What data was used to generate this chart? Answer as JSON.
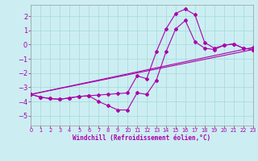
{
  "background_color": "#cceef2",
  "grid_color": "#aadddd",
  "line_color": "#aa00aa",
  "xlim": [
    0,
    23
  ],
  "ylim": [
    -5.7,
    2.8
  ],
  "xticks": [
    0,
    1,
    2,
    3,
    4,
    5,
    6,
    7,
    8,
    9,
    10,
    11,
    12,
    13,
    14,
    15,
    16,
    17,
    18,
    19,
    20,
    21,
    22,
    23
  ],
  "yticks": [
    -5,
    -4,
    -3,
    -2,
    -1,
    0,
    1,
    2
  ],
  "xlabel": "Windchill (Refroidissement éolien,°C)",
  "curves": [
    {
      "x": [
        0,
        1,
        2,
        3,
        4,
        5,
        6,
        7,
        8,
        9,
        10,
        11,
        12,
        13,
        14,
        15,
        16,
        17,
        18,
        19,
        20,
        21,
        22,
        23
      ],
      "y": [
        -3.5,
        -3.7,
        -3.8,
        -3.85,
        -3.75,
        -3.65,
        -3.6,
        -3.55,
        -3.5,
        -3.45,
        -3.4,
        -2.2,
        -2.4,
        -0.5,
        1.1,
        2.2,
        2.5,
        2.1,
        0.15,
        -0.25,
        -0.05,
        0.05,
        -0.25,
        -0.35
      ]
    },
    {
      "x": [
        0,
        1,
        2,
        3,
        4,
        5,
        6,
        7,
        8,
        9,
        10,
        11,
        12,
        13,
        14,
        15,
        16,
        17,
        18,
        19,
        20,
        21,
        22,
        23
      ],
      "y": [
        -3.5,
        -3.7,
        -3.8,
        -3.85,
        -3.75,
        -3.65,
        -3.6,
        -4.0,
        -4.3,
        -4.6,
        -4.6,
        -3.4,
        -3.5,
        -2.5,
        -0.5,
        1.1,
        1.7,
        0.2,
        -0.25,
        -0.35,
        -0.05,
        0.05,
        -0.25,
        -0.35
      ]
    },
    {
      "x": [
        0,
        23
      ],
      "y": [
        -3.5,
        -0.35
      ]
    },
    {
      "x": [
        0,
        23
      ],
      "y": [
        -3.5,
        -0.2
      ]
    }
  ]
}
